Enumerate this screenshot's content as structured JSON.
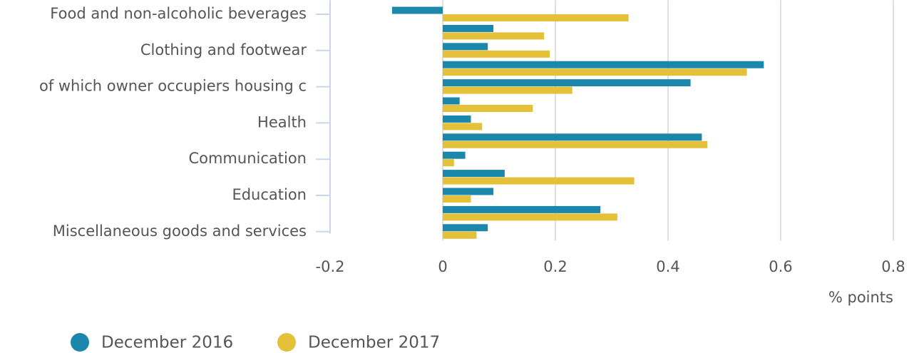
{
  "chart_data": {
    "type": "hbar",
    "categories": [
      "Food and non-alcoholic beverages",
      null,
      "Clothing and footwear",
      null,
      "of which owner occupiers housing c",
      null,
      "Health",
      null,
      "Communication",
      null,
      "Education",
      null,
      "Miscellaneous goods and services"
    ],
    "series": [
      {
        "name": "December 2016",
        "color": "#1b87aa",
        "values": [
          -0.09,
          0.09,
          0.08,
          0.57,
          0.44,
          0.03,
          0.05,
          0.46,
          0.04,
          0.11,
          0.09,
          0.28,
          0.08
        ]
      },
      {
        "name": "December 2017",
        "color": "#e5c13a",
        "values": [
          0.33,
          0.18,
          0.19,
          0.54,
          0.23,
          0.16,
          0.07,
          0.47,
          0.02,
          0.34,
          0.05,
          0.31,
          0.06
        ]
      }
    ],
    "xlim": [
      -0.2,
      0.8
    ],
    "xticks": [
      -0.2,
      0,
      0.2,
      0.4,
      0.6,
      0.8
    ],
    "grid": true,
    "xlabel": "% points",
    "legend": "bottom"
  }
}
